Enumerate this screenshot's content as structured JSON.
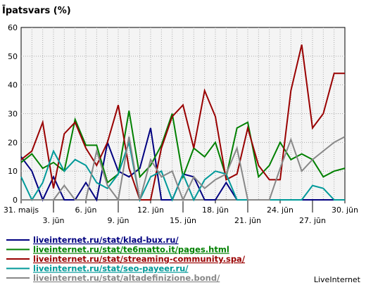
{
  "chart_data": {
    "type": "line",
    "title": "Īpatsvars (%)",
    "watermark": "LiveInternet",
    "ylim": [
      0,
      60
    ],
    "yticks": [
      0,
      10,
      20,
      30,
      40,
      50,
      60
    ],
    "grid": true,
    "legend_position": "bottom-left",
    "x_tick_labels": [
      {
        "day": 0,
        "label": "31. maijs",
        "row": 0
      },
      {
        "day": 3,
        "label": "3. jūn",
        "row": 1
      },
      {
        "day": 6,
        "label": "6. jūn",
        "row": 0
      },
      {
        "day": 9,
        "label": "9. jūn",
        "row": 1
      },
      {
        "day": 12,
        "label": "12. jūn",
        "row": 0
      },
      {
        "day": 15,
        "label": "15. jūn",
        "row": 1
      },
      {
        "day": 18,
        "label": "18. jūn",
        "row": 0
      },
      {
        "day": 21,
        "label": "21. jūn",
        "row": 1
      },
      {
        "day": 24,
        "label": "24. jūn",
        "row": 0
      },
      {
        "day": 27,
        "label": "27. jūn",
        "row": 1
      },
      {
        "day": 30,
        "label": "30. jūn",
        "row": 0
      }
    ],
    "x_count": 31,
    "series": [
      {
        "name": "liveinternet.ru/stat/klad-bux.ru/",
        "color": "#000080",
        "values": [
          15,
          10,
          0,
          8,
          0,
          0,
          6,
          0,
          20,
          10,
          8,
          11,
          25,
          0,
          0,
          9,
          8,
          0,
          0,
          6,
          0,
          0,
          0,
          0,
          0,
          0,
          0,
          0,
          0,
          0,
          0
        ]
      },
      {
        "name": "liveinternet.ru/stat/te6matto.it/pages.html",
        "color": "#008000",
        "values": [
          13,
          16,
          11,
          13,
          10,
          28,
          19,
          19,
          6,
          9,
          31,
          8,
          12,
          19,
          30,
          8,
          18,
          15,
          20,
          8,
          25,
          27,
          8,
          12,
          20,
          14,
          16,
          14,
          8,
          10,
          11
        ]
      },
      {
        "name": "liveinternet.ru/stat/streaming-community.spa/",
        "color": "#990000",
        "values": [
          14,
          17,
          27,
          4,
          23,
          27,
          18,
          12,
          20,
          33,
          11,
          0,
          0,
          18,
          29,
          33,
          18,
          38,
          29,
          7,
          9,
          25,
          12,
          7,
          7,
          38,
          54,
          25,
          30,
          44,
          44
        ]
      },
      {
        "name": "liveinternet.ru/stat/seo-payeer.ru/",
        "color": "#009999",
        "values": [
          8,
          0,
          6,
          17,
          10,
          14,
          12,
          6,
          4,
          9,
          20,
          0,
          8,
          10,
          0,
          9,
          0,
          7,
          10,
          9,
          0,
          0,
          0,
          0,
          0,
          0,
          0,
          5,
          4,
          0,
          0
        ]
      },
      {
        "name": "liveinternet.ru/stat/altadefinizione.bond/",
        "color": "#888888",
        "values": [
          0,
          0,
          0,
          0,
          5,
          0,
          0,
          17,
          5,
          0,
          22,
          0,
          14,
          8,
          10,
          0,
          8,
          4,
          7,
          9,
          18,
          0,
          0,
          0,
          11,
          21,
          10,
          14,
          17,
          20,
          22
        ]
      }
    ]
  }
}
